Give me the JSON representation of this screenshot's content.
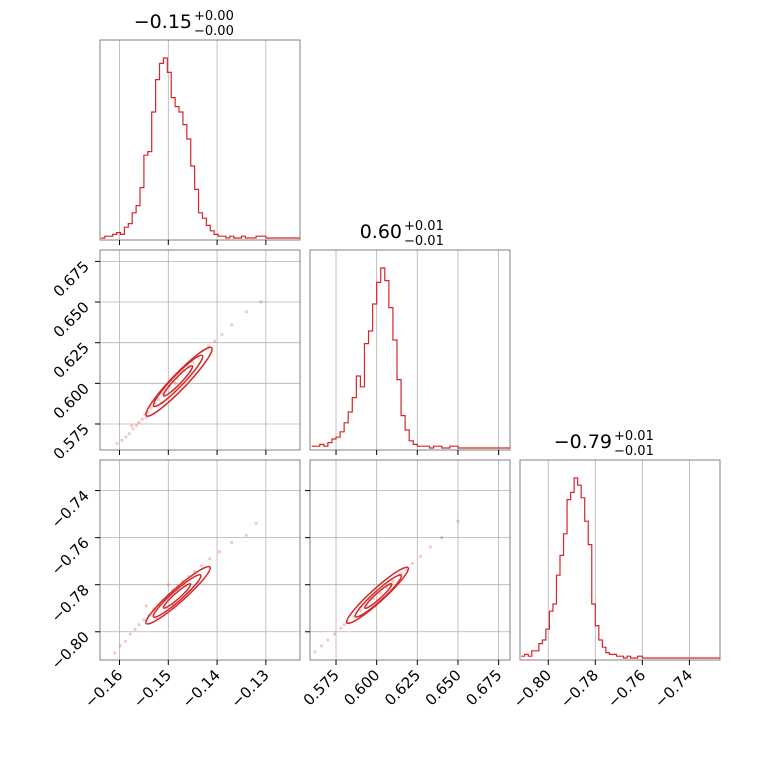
{
  "chart_data": {
    "type": "corner",
    "color": "#d62728",
    "grid": true,
    "params": [
      {
        "id": "p1",
        "median": "−0.15",
        "plus": "+0.00",
        "minus": "−0.00",
        "range": [
          -0.164,
          -0.123
        ],
        "ticks": [
          -0.16,
          -0.15,
          -0.14,
          -0.13
        ],
        "tick_labels": [
          "−0.16",
          "−0.15",
          "−0.14",
          "−0.13"
        ]
      },
      {
        "id": "p2",
        "median": "0.60",
        "plus": "+0.01",
        "minus": "−0.01",
        "range": [
          0.559,
          0.682
        ],
        "ticks": [
          0.575,
          0.6,
          0.625,
          0.65,
          0.675
        ],
        "tick_labels": [
          "0.575",
          "0.600",
          "0.625",
          "0.650",
          "0.675"
        ]
      },
      {
        "id": "p3",
        "median": "−0.79",
        "plus": "+0.01",
        "minus": "−0.01",
        "range": [
          -0.812,
          -0.727
        ],
        "ticks": [
          -0.8,
          -0.78,
          -0.76,
          -0.74
        ],
        "tick_labels": [
          "−0.80",
          "−0.78",
          "−0.76",
          "−0.74"
        ]
      }
    ],
    "histograms": [
      {
        "param": 0,
        "bins": [
          {
            "x": -0.1638,
            "c": 0
          },
          {
            "x": -0.163,
            "c": 1
          },
          {
            "x": -0.1622,
            "c": 1
          },
          {
            "x": -0.1614,
            "c": 2
          },
          {
            "x": -0.1606,
            "c": 3
          },
          {
            "x": -0.1598,
            "c": 2
          },
          {
            "x": -0.159,
            "c": 6
          },
          {
            "x": -0.1582,
            "c": 8
          },
          {
            "x": -0.1574,
            "c": 14
          },
          {
            "x": -0.1566,
            "c": 18
          },
          {
            "x": -0.1558,
            "c": 28
          },
          {
            "x": -0.155,
            "c": 46
          },
          {
            "x": -0.1542,
            "c": 48
          },
          {
            "x": -0.1534,
            "c": 70
          },
          {
            "x": -0.1526,
            "c": 88
          },
          {
            "x": -0.1518,
            "c": 97
          },
          {
            "x": -0.151,
            "c": 100
          },
          {
            "x": -0.1502,
            "c": 92
          },
          {
            "x": -0.1494,
            "c": 78
          },
          {
            "x": -0.1486,
            "c": 73
          },
          {
            "x": -0.1478,
            "c": 70
          },
          {
            "x": -0.147,
            "c": 63
          },
          {
            "x": -0.1462,
            "c": 55
          },
          {
            "x": -0.1454,
            "c": 40
          },
          {
            "x": -0.1446,
            "c": 27
          },
          {
            "x": -0.1438,
            "c": 14
          },
          {
            "x": -0.143,
            "c": 11
          },
          {
            "x": -0.1422,
            "c": 7
          },
          {
            "x": -0.1414,
            "c": 4
          },
          {
            "x": -0.1406,
            "c": 2
          },
          {
            "x": -0.1398,
            "c": 1
          },
          {
            "x": -0.139,
            "c": 1
          },
          {
            "x": -0.1382,
            "c": 0
          },
          {
            "x": -0.1374,
            "c": 1
          },
          {
            "x": -0.1366,
            "c": 0
          },
          {
            "x": -0.1358,
            "c": 0
          },
          {
            "x": -0.135,
            "c": 1
          },
          {
            "x": -0.1342,
            "c": 0
          },
          {
            "x": -0.1334,
            "c": 0
          },
          {
            "x": -0.132,
            "c": 1
          },
          {
            "x": -0.13,
            "c": 0
          },
          {
            "x": -0.124,
            "c": 0
          }
        ]
      },
      {
        "param": 1,
        "bins": [
          {
            "x": 0.56,
            "c": 1
          },
          {
            "x": 0.5625,
            "c": 1
          },
          {
            "x": 0.565,
            "c": 2
          },
          {
            "x": 0.5675,
            "c": 1
          },
          {
            "x": 0.57,
            "c": 3
          },
          {
            "x": 0.5725,
            "c": 5
          },
          {
            "x": 0.575,
            "c": 6
          },
          {
            "x": 0.5775,
            "c": 9
          },
          {
            "x": 0.58,
            "c": 14
          },
          {
            "x": 0.5825,
            "c": 20
          },
          {
            "x": 0.585,
            "c": 28
          },
          {
            "x": 0.5875,
            "c": 40
          },
          {
            "x": 0.59,
            "c": 34
          },
          {
            "x": 0.5925,
            "c": 58
          },
          {
            "x": 0.595,
            "c": 65
          },
          {
            "x": 0.5975,
            "c": 80
          },
          {
            "x": 0.6,
            "c": 92
          },
          {
            "x": 0.6025,
            "c": 100
          },
          {
            "x": 0.605,
            "c": 93
          },
          {
            "x": 0.6075,
            "c": 78
          },
          {
            "x": 0.61,
            "c": 60
          },
          {
            "x": 0.6125,
            "c": 38
          },
          {
            "x": 0.615,
            "c": 18
          },
          {
            "x": 0.6175,
            "c": 10
          },
          {
            "x": 0.62,
            "c": 4
          },
          {
            "x": 0.6225,
            "c": 2
          },
          {
            "x": 0.625,
            "c": 1
          },
          {
            "x": 0.6275,
            "c": 1
          },
          {
            "x": 0.63,
            "c": 1
          },
          {
            "x": 0.6325,
            "c": 0
          },
          {
            "x": 0.635,
            "c": 1
          },
          {
            "x": 0.64,
            "c": 0
          },
          {
            "x": 0.645,
            "c": 1
          },
          {
            "x": 0.65,
            "c": 0
          },
          {
            "x": 0.68,
            "c": 0
          }
        ]
      },
      {
        "param": 2,
        "bins": [
          {
            "x": -0.8115,
            "c": 1
          },
          {
            "x": -0.81,
            "c": 2
          },
          {
            "x": -0.8085,
            "c": 1
          },
          {
            "x": -0.807,
            "c": 4
          },
          {
            "x": -0.8055,
            "c": 4
          },
          {
            "x": -0.804,
            "c": 8
          },
          {
            "x": -0.8025,
            "c": 10
          },
          {
            "x": -0.801,
            "c": 16
          },
          {
            "x": -0.7995,
            "c": 26
          },
          {
            "x": -0.798,
            "c": 30
          },
          {
            "x": -0.7965,
            "c": 46
          },
          {
            "x": -0.795,
            "c": 57
          },
          {
            "x": -0.7935,
            "c": 69
          },
          {
            "x": -0.792,
            "c": 88
          },
          {
            "x": -0.7905,
            "c": 92
          },
          {
            "x": -0.789,
            "c": 100
          },
          {
            "x": -0.7875,
            "c": 96
          },
          {
            "x": -0.786,
            "c": 89
          },
          {
            "x": -0.7845,
            "c": 76
          },
          {
            "x": -0.783,
            "c": 63
          },
          {
            "x": -0.7815,
            "c": 30
          },
          {
            "x": -0.78,
            "c": 18
          },
          {
            "x": -0.7785,
            "c": 10
          },
          {
            "x": -0.777,
            "c": 6
          },
          {
            "x": -0.7755,
            "c": 3
          },
          {
            "x": -0.774,
            "c": 2
          },
          {
            "x": -0.7725,
            "c": 2
          },
          {
            "x": -0.771,
            "c": 1
          },
          {
            "x": -0.7695,
            "c": 1
          },
          {
            "x": -0.768,
            "c": 0
          },
          {
            "x": -0.7665,
            "c": 1
          },
          {
            "x": -0.765,
            "c": 0
          },
          {
            "x": -0.762,
            "c": 1
          },
          {
            "x": -0.76,
            "c": 0
          },
          {
            "x": -0.728,
            "c": 0
          }
        ]
      }
    ],
    "scatter_panels": [
      {
        "x_param": 0,
        "y_param": 1,
        "points": [
          [
            -0.1605,
            0.563
          ],
          [
            -0.1595,
            0.565
          ],
          [
            -0.1587,
            0.567
          ],
          [
            -0.158,
            0.569
          ],
          [
            -0.1572,
            0.572
          ],
          [
            -0.1565,
            0.574
          ],
          [
            -0.156,
            0.576
          ],
          [
            -0.1553,
            0.578
          ],
          [
            -0.1548,
            0.581
          ],
          [
            -0.1542,
            0.582
          ],
          [
            -0.1535,
            0.585
          ],
          [
            -0.1528,
            0.587
          ],
          [
            -0.152,
            0.59
          ],
          [
            -0.1512,
            0.594
          ],
          [
            -0.1505,
            0.596
          ],
          [
            -0.1498,
            0.598
          ],
          [
            -0.149,
            0.601
          ],
          [
            -0.1482,
            0.603
          ],
          [
            -0.1475,
            0.606
          ],
          [
            -0.1468,
            0.608
          ],
          [
            -0.146,
            0.611
          ],
          [
            -0.145,
            0.613
          ],
          [
            -0.144,
            0.617
          ],
          [
            -0.143,
            0.62
          ],
          [
            -0.1418,
            0.623
          ],
          [
            -0.1405,
            0.626
          ],
          [
            -0.139,
            0.63
          ],
          [
            -0.137,
            0.636
          ],
          [
            -0.134,
            0.644
          ],
          [
            -0.131,
            0.65
          ],
          [
            -0.1575,
            0.574
          ],
          [
            -0.1545,
            0.579
          ],
          [
            -0.1515,
            0.588
          ],
          [
            -0.1485,
            0.6
          ],
          [
            -0.1455,
            0.607
          ]
        ],
        "contours": [
          {
            "cx": -0.148,
            "cy": 0.6015,
            "sx": 0.003,
            "sy": 0.009
          },
          {
            "cx": -0.148,
            "cy": 0.6015,
            "sx": 0.0052,
            "sy": 0.015
          },
          {
            "cx": -0.1478,
            "cy": 0.601,
            "sx": 0.007,
            "sy": 0.02
          }
        ]
      },
      {
        "x_param": 0,
        "y_param": 2,
        "points": [
          [
            -0.161,
            -0.809
          ],
          [
            -0.1598,
            -0.806
          ],
          [
            -0.1588,
            -0.804
          ],
          [
            -0.1578,
            -0.801
          ],
          [
            -0.1568,
            -0.799
          ],
          [
            -0.156,
            -0.797
          ],
          [
            -0.155,
            -0.795
          ],
          [
            -0.154,
            -0.793
          ],
          [
            -0.153,
            -0.7905
          ],
          [
            -0.152,
            -0.7885
          ],
          [
            -0.151,
            -0.7865
          ],
          [
            -0.15,
            -0.7845
          ],
          [
            -0.149,
            -0.7825
          ],
          [
            -0.148,
            -0.7805
          ],
          [
            -0.147,
            -0.7785
          ],
          [
            -0.1458,
            -0.7765
          ],
          [
            -0.1446,
            -0.7745
          ],
          [
            -0.1432,
            -0.772
          ],
          [
            -0.1415,
            -0.769
          ],
          [
            -0.1395,
            -0.766
          ],
          [
            -0.137,
            -0.762
          ],
          [
            -0.134,
            -0.759
          ],
          [
            -0.132,
            -0.754
          ],
          [
            -0.1525,
            -0.794
          ],
          [
            -0.149,
            -0.7885
          ],
          [
            -0.146,
            -0.783
          ],
          [
            -0.144,
            -0.7795
          ],
          [
            -0.15,
            -0.78
          ],
          [
            -0.1545,
            -0.789
          ]
        ],
        "contours": [
          {
            "cx": -0.1482,
            "cy": -0.7848,
            "sx": 0.003,
            "sy": 0.0045
          },
          {
            "cx": -0.1482,
            "cy": -0.7848,
            "sx": 0.0052,
            "sy": 0.008
          },
          {
            "cx": -0.148,
            "cy": -0.7845,
            "sx": 0.007,
            "sy": 0.0108
          }
        ]
      },
      {
        "x_param": 1,
        "y_param": 2,
        "points": [
          [
            0.562,
            -0.8085
          ],
          [
            0.566,
            -0.806
          ],
          [
            0.57,
            -0.8035
          ],
          [
            0.574,
            -0.801
          ],
          [
            0.578,
            -0.7985
          ],
          [
            0.582,
            -0.796
          ],
          [
            0.586,
            -0.7935
          ],
          [
            0.59,
            -0.791
          ],
          [
            0.594,
            -0.7885
          ],
          [
            0.598,
            -0.786
          ],
          [
            0.602,
            -0.7835
          ],
          [
            0.606,
            -0.781
          ],
          [
            0.61,
            -0.7785
          ],
          [
            0.614,
            -0.776
          ],
          [
            0.618,
            -0.7735
          ],
          [
            0.622,
            -0.771
          ],
          [
            0.627,
            -0.768
          ],
          [
            0.633,
            -0.764
          ],
          [
            0.64,
            -0.76
          ],
          [
            0.65,
            -0.753
          ],
          [
            0.58,
            -0.797
          ],
          [
            0.596,
            -0.7865
          ],
          [
            0.608,
            -0.78
          ],
          [
            0.615,
            -0.7755
          ]
        ],
        "contours": [
          {
            "cx": 0.601,
            "cy": -0.7848,
            "sx": 0.009,
            "sy": 0.0045
          },
          {
            "cx": 0.601,
            "cy": -0.7848,
            "sx": 0.015,
            "sy": 0.008
          },
          {
            "cx": 0.6005,
            "cy": -0.7845,
            "sx": 0.02,
            "sy": 0.0108
          }
        ]
      }
    ]
  }
}
